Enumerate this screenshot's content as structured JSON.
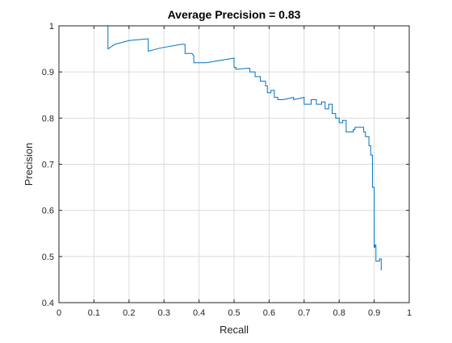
{
  "chart_data": {
    "type": "line",
    "title": "Average Precision = 0.83",
    "xlabel": "Recall",
    "ylabel": "Precision",
    "xlim": [
      0,
      1
    ],
    "ylim": [
      0.4,
      1
    ],
    "xticks": [
      0,
      0.1,
      0.2,
      0.3,
      0.4,
      0.5,
      0.6,
      0.7,
      0.8,
      0.9,
      1
    ],
    "yticks": [
      0.4,
      0.5,
      0.6,
      0.7,
      0.8,
      0.9,
      1
    ],
    "xtick_labels": [
      "0",
      "0.1",
      "0.2",
      "0.3",
      "0.4",
      "0.5",
      "0.6",
      "0.7",
      "0.8",
      "0.9",
      "1"
    ],
    "ytick_labels": [
      "0.4",
      "0.5",
      "0.6",
      "0.7",
      "0.8",
      "0.9",
      "1"
    ],
    "grid": true,
    "line_color": "#0072BD",
    "series": [
      {
        "x": [
          0.0,
          0.14,
          0.14,
          0.16,
          0.2,
          0.255,
          0.255,
          0.29,
          0.35,
          0.36,
          0.36,
          0.38,
          0.385,
          0.385,
          0.42,
          0.5,
          0.5,
          0.505,
          0.505,
          0.54,
          0.545,
          0.545,
          0.56,
          0.56,
          0.575,
          0.575,
          0.59,
          0.59,
          0.595,
          0.595,
          0.605,
          0.605,
          0.615,
          0.615,
          0.625,
          0.625,
          0.64,
          0.67,
          0.67,
          0.7,
          0.7,
          0.72,
          0.72,
          0.735,
          0.735,
          0.75,
          0.75,
          0.76,
          0.76,
          0.77,
          0.77,
          0.78,
          0.78,
          0.79,
          0.79,
          0.8,
          0.8,
          0.81,
          0.81,
          0.82,
          0.82,
          0.84,
          0.84,
          0.845,
          0.845,
          0.87,
          0.87,
          0.875,
          0.875,
          0.885,
          0.885,
          0.89,
          0.89,
          0.895,
          0.895,
          0.9,
          0.9,
          0.902,
          0.902,
          0.905,
          0.905,
          0.915,
          0.915,
          0.92,
          0.92
        ],
        "y": [
          1.0,
          1.0,
          0.95,
          0.96,
          0.968,
          0.972,
          0.945,
          0.952,
          0.96,
          0.96,
          0.94,
          0.94,
          0.935,
          0.92,
          0.92,
          0.93,
          0.91,
          0.91,
          0.906,
          0.908,
          0.908,
          0.9,
          0.9,
          0.89,
          0.89,
          0.88,
          0.88,
          0.87,
          0.87,
          0.855,
          0.855,
          0.86,
          0.86,
          0.845,
          0.845,
          0.84,
          0.84,
          0.845,
          0.84,
          0.845,
          0.83,
          0.83,
          0.84,
          0.84,
          0.83,
          0.83,
          0.835,
          0.835,
          0.82,
          0.82,
          0.83,
          0.83,
          0.81,
          0.81,
          0.8,
          0.8,
          0.79,
          0.79,
          0.795,
          0.795,
          0.77,
          0.77,
          0.775,
          0.775,
          0.78,
          0.78,
          0.77,
          0.77,
          0.76,
          0.76,
          0.74,
          0.74,
          0.72,
          0.72,
          0.65,
          0.65,
          0.52,
          0.52,
          0.525,
          0.525,
          0.49,
          0.49,
          0.495,
          0.495,
          0.47
        ]
      }
    ]
  }
}
